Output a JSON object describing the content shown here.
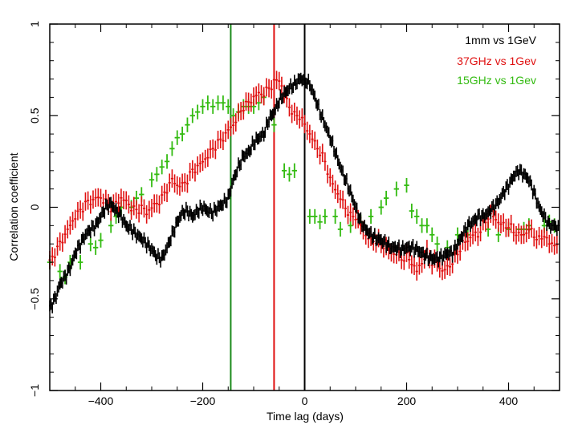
{
  "chart_data": {
    "type": "scatter",
    "title": "",
    "xlabel": "Time lag (days)",
    "ylabel": "Correlation coefficient",
    "xlim": [
      -500,
      500
    ],
    "ylim": [
      -1,
      1
    ],
    "x_ticks": [
      -400,
      -200,
      0,
      200,
      400
    ],
    "x_tick_labels": [
      "−400",
      "−200",
      "0",
      "200",
      "400"
    ],
    "y_ticks": [
      -1,
      -0.5,
      0,
      0.5,
      1
    ],
    "y_tick_labels": [
      "−1",
      "−0.5",
      "0",
      "0.5",
      "1"
    ],
    "legend_position": "top-right",
    "vertical_lines": [
      {
        "x": -145,
        "color": "#1a8a1a",
        "name": "green-lag-line"
      },
      {
        "x": -60,
        "color": "#e01010",
        "name": "red-lag-line"
      },
      {
        "x": 0,
        "color": "#000000",
        "name": "zero-lag-line"
      }
    ],
    "series": [
      {
        "name": "1mm vs 1GeV",
        "color": "#000000",
        "x_step": 10,
        "y_err": 0.03,
        "x": [
          -500,
          -490,
          -480,
          -470,
          -460,
          -450,
          -440,
          -430,
          -420,
          -410,
          -400,
          -390,
          -380,
          -370,
          -360,
          -350,
          -340,
          -330,
          -320,
          -310,
          -300,
          -290,
          -280,
          -270,
          -260,
          -250,
          -240,
          -230,
          -220,
          -210,
          -200,
          -190,
          -180,
          -170,
          -160,
          -150,
          -140,
          -130,
          -120,
          -110,
          -100,
          -90,
          -80,
          -70,
          -60,
          -50,
          -40,
          -30,
          -20,
          -10,
          0,
          10,
          20,
          30,
          40,
          50,
          60,
          70,
          80,
          90,
          100,
          110,
          120,
          130,
          140,
          150,
          160,
          170,
          180,
          190,
          200,
          210,
          220,
          230,
          240,
          250,
          260,
          270,
          280,
          290,
          300,
          310,
          320,
          330,
          340,
          350,
          360,
          370,
          380,
          390,
          400,
          410,
          420,
          430,
          440,
          450,
          460,
          470,
          480,
          490,
          500
        ],
        "values": [
          -0.55,
          -0.5,
          -0.42,
          -0.38,
          -0.33,
          -0.25,
          -0.2,
          -0.15,
          -0.12,
          -0.1,
          -0.05,
          0.0,
          0.02,
          -0.02,
          -0.05,
          -0.1,
          -0.12,
          -0.15,
          -0.17,
          -0.2,
          -0.23,
          -0.27,
          -0.28,
          -0.22,
          -0.15,
          -0.08,
          -0.03,
          -0.02,
          -0.05,
          -0.02,
          0.0,
          -0.02,
          -0.03,
          0.0,
          0.02,
          0.05,
          0.15,
          0.22,
          0.28,
          0.3,
          0.35,
          0.38,
          0.4,
          0.48,
          0.52,
          0.58,
          0.62,
          0.65,
          0.67,
          0.7,
          0.7,
          0.67,
          0.6,
          0.52,
          0.45,
          0.38,
          0.3,
          0.22,
          0.15,
          0.08,
          0.0,
          -0.08,
          -0.12,
          -0.15,
          -0.17,
          -0.18,
          -0.2,
          -0.22,
          -0.22,
          -0.23,
          -0.22,
          -0.22,
          -0.23,
          -0.25,
          -0.27,
          -0.28,
          -0.28,
          -0.27,
          -0.25,
          -0.25,
          -0.2,
          -0.15,
          -0.1,
          -0.08,
          -0.05,
          -0.05,
          -0.03,
          0.0,
          0.03,
          0.08,
          0.12,
          0.17,
          0.2,
          0.18,
          0.15,
          0.08,
          0.0,
          -0.05,
          -0.1,
          -0.1,
          -0.12
        ]
      },
      {
        "name": "37GHz vs 1Gev",
        "color": "#e01010",
        "x_step": 10,
        "y_err": 0.05,
        "x": [
          -500,
          -490,
          -480,
          -470,
          -460,
          -450,
          -440,
          -430,
          -420,
          -410,
          -400,
          -390,
          -380,
          -370,
          -360,
          -350,
          -340,
          -330,
          -320,
          -310,
          -300,
          -290,
          -280,
          -270,
          -260,
          -250,
          -240,
          -230,
          -220,
          -210,
          -200,
          -190,
          -180,
          -170,
          -160,
          -150,
          -140,
          -130,
          -120,
          -110,
          -100,
          -90,
          -80,
          -70,
          -60,
          -50,
          -40,
          -30,
          -20,
          -10,
          0,
          10,
          20,
          30,
          40,
          50,
          60,
          70,
          80,
          90,
          100,
          110,
          120,
          130,
          140,
          150,
          160,
          170,
          180,
          190,
          200,
          210,
          220,
          230,
          240,
          250,
          260,
          270,
          280,
          290,
          300,
          310,
          320,
          330,
          340,
          350,
          360,
          370,
          380,
          390,
          400,
          410,
          420,
          430,
          440,
          450,
          460,
          470,
          480,
          490,
          500
        ],
        "values": [
          -0.3,
          -0.25,
          -0.2,
          -0.15,
          -0.1,
          -0.05,
          -0.02,
          0.02,
          0.03,
          0.05,
          0.05,
          0.03,
          0.0,
          0.02,
          0.05,
          0.03,
          0.0,
          -0.02,
          0.0,
          -0.03,
          0.0,
          0.02,
          0.05,
          0.1,
          0.15,
          0.12,
          0.12,
          0.15,
          0.2,
          0.22,
          0.25,
          0.28,
          0.32,
          0.35,
          0.38,
          0.42,
          0.45,
          0.5,
          0.55,
          0.57,
          0.6,
          0.62,
          0.62,
          0.65,
          0.68,
          0.7,
          0.62,
          0.55,
          0.5,
          0.5,
          0.45,
          0.4,
          0.35,
          0.3,
          0.25,
          0.15,
          0.1,
          0.05,
          0.0,
          -0.05,
          -0.05,
          -0.1,
          -0.15,
          -0.18,
          -0.18,
          -0.2,
          -0.22,
          -0.25,
          -0.25,
          -0.28,
          -0.27,
          -0.3,
          -0.35,
          -0.3,
          -0.25,
          -0.3,
          -0.3,
          -0.35,
          -0.33,
          -0.3,
          -0.25,
          -0.2,
          -0.18,
          -0.15,
          -0.15,
          -0.1,
          -0.05,
          -0.05,
          -0.08,
          -0.1,
          -0.1,
          -0.13,
          -0.15,
          -0.15,
          -0.12,
          -0.15,
          -0.18,
          -0.15,
          -0.2,
          -0.2,
          -0.2
        ]
      },
      {
        "name": "15GHz vs 1Gev",
        "color": "#33bb11",
        "y_err": 0.04,
        "x": [
          -500,
          -480,
          -470,
          -460,
          -440,
          -420,
          -410,
          -400,
          -380,
          -370,
          -360,
          -340,
          -330,
          -320,
          -300,
          -290,
          -280,
          -270,
          -260,
          -250,
          -240,
          -230,
          -220,
          -210,
          -200,
          -190,
          -180,
          -170,
          -160,
          -150,
          -140,
          -130,
          -120,
          -110,
          -100,
          -90,
          -80,
          -60,
          -40,
          -30,
          -20,
          10,
          20,
          30,
          40,
          60,
          70,
          90,
          110,
          130,
          150,
          160,
          180,
          200,
          210,
          220,
          230,
          240,
          250,
          260,
          280,
          300,
          320,
          360,
          380,
          400,
          430,
          440,
          470,
          480,
          490
        ],
        "x_errs": [
          5,
          5,
          5,
          5,
          5,
          5,
          5,
          5,
          5,
          5,
          5,
          5,
          5,
          5,
          5,
          5,
          5,
          5,
          5,
          5,
          5,
          5,
          5,
          5,
          5,
          5,
          5,
          5,
          5,
          5,
          5,
          5,
          5,
          5,
          5,
          5,
          5,
          5,
          5,
          5,
          5,
          5,
          5,
          5,
          5,
          5,
          5,
          5,
          5,
          5,
          5,
          5,
          5,
          5,
          5,
          5,
          5,
          5,
          5,
          5,
          5,
          5,
          5,
          5,
          5,
          5,
          15,
          5,
          5,
          5,
          5
        ],
        "values": [
          -0.3,
          -0.35,
          -0.38,
          -0.3,
          -0.3,
          -0.2,
          -0.22,
          -0.18,
          -0.1,
          -0.05,
          0.0,
          0.0,
          0.05,
          0.07,
          0.15,
          0.18,
          0.22,
          0.25,
          0.32,
          0.38,
          0.4,
          0.45,
          0.5,
          0.52,
          0.55,
          0.57,
          0.55,
          0.57,
          0.57,
          0.55,
          0.5,
          0.52,
          0.55,
          0.55,
          0.55,
          0.57,
          0.6,
          0.45,
          0.2,
          0.18,
          0.2,
          -0.05,
          -0.05,
          -0.08,
          -0.05,
          -0.05,
          -0.12,
          -0.1,
          -0.08,
          -0.05,
          0.0,
          0.05,
          0.1,
          0.12,
          -0.02,
          -0.05,
          -0.1,
          -0.1,
          -0.15,
          -0.2,
          -0.22,
          -0.15,
          -0.15,
          -0.12,
          -0.15,
          -0.12,
          -0.12,
          -0.1,
          -0.1,
          -0.08,
          -0.1
        ]
      }
    ]
  }
}
